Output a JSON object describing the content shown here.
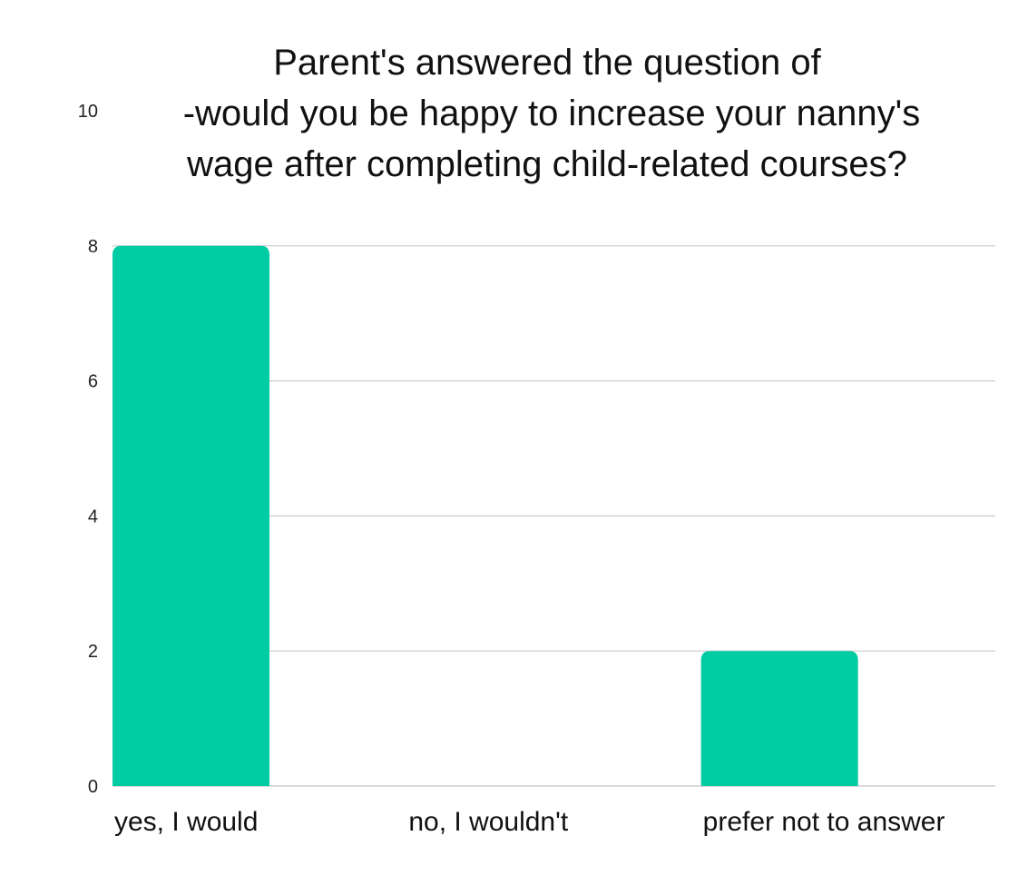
{
  "chart_data": {
    "type": "bar",
    "title_lines": [
      "Parent's answered the question of",
      "-would you be happy to increase your nanny's",
      "wage after completing child-related courses?"
    ],
    "categories": [
      "yes, I would",
      "no, I wouldn't",
      "prefer not to answer"
    ],
    "values": [
      8,
      0,
      2
    ],
    "ylim": [
      0,
      10
    ],
    "yticks": [
      0,
      2,
      4,
      6,
      8,
      10
    ],
    "xlabel": "",
    "ylabel": "",
    "grid": true,
    "legend": "none",
    "bar_color": "#00CCA3",
    "grid_color": "#CCCCCC"
  }
}
